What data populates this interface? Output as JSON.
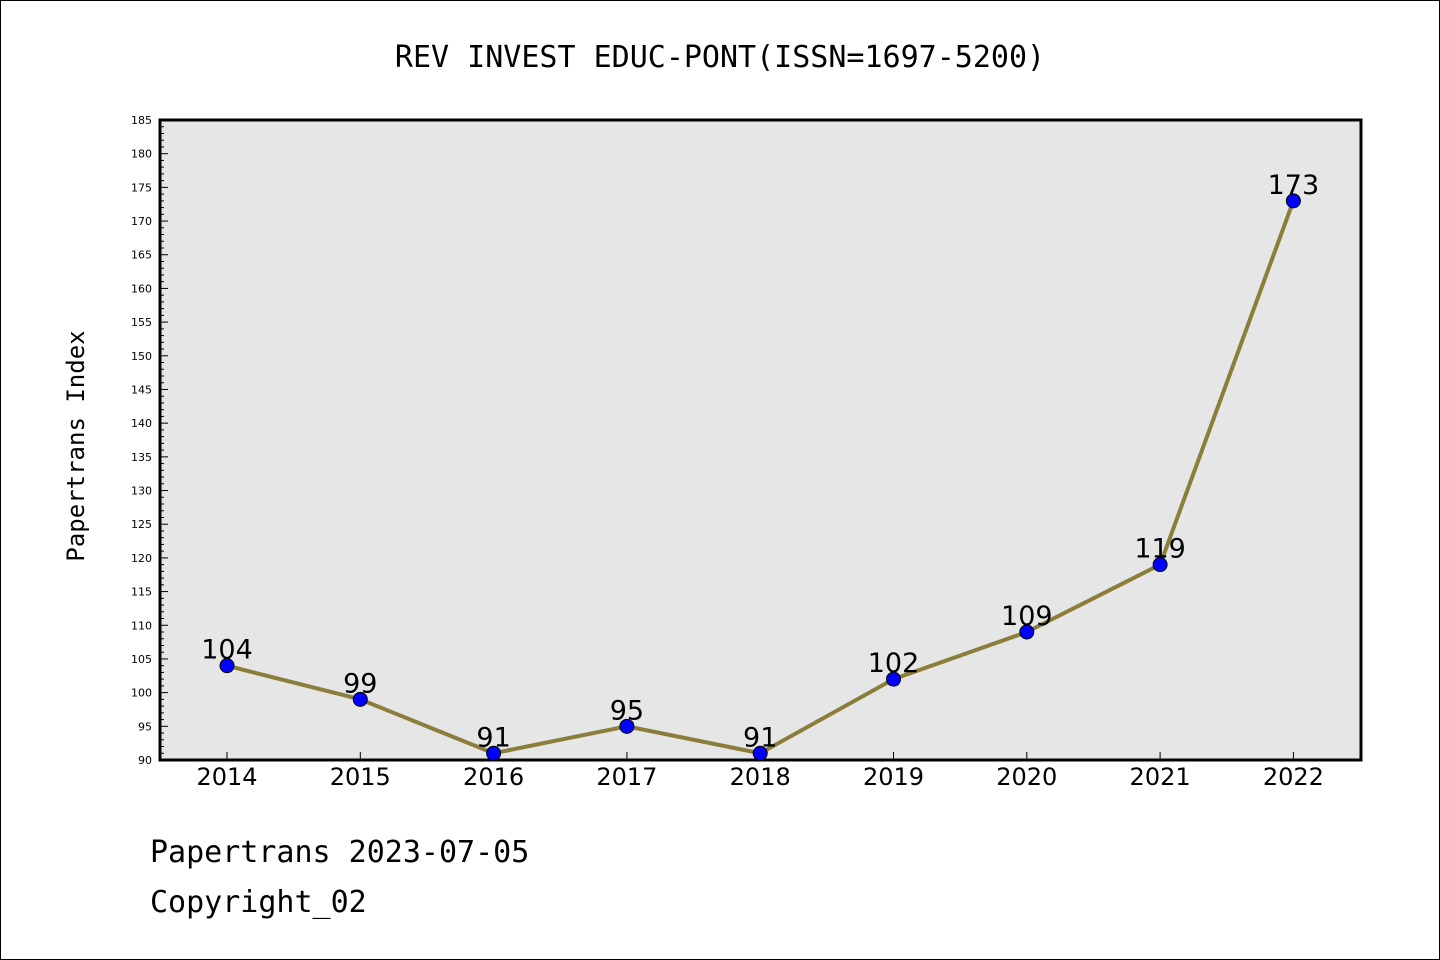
{
  "chart_data": {
    "type": "line",
    "title": "REV INVEST EDUC-PONT(ISSN=1697-5200)",
    "xlabel": "",
    "ylabel": "Papertrans Index",
    "x": [
      "2014",
      "2015",
      "2016",
      "2017",
      "2018",
      "2019",
      "2020",
      "2021",
      "2022"
    ],
    "series": [
      {
        "name": "Papertrans Index",
        "values": [
          104,
          99,
          91,
          95,
          91,
          102,
          109,
          119,
          173
        ]
      }
    ],
    "ylim": [
      90,
      185
    ],
    "ytick_step": 5,
    "grid": false,
    "colors": {
      "line": "#8b7d3a",
      "marker": "#0000ff",
      "plot_background": "#e6e6e6"
    }
  },
  "footer": {
    "date_line": "Papertrans 2023-07-05",
    "copyright": "Copyright_02"
  }
}
